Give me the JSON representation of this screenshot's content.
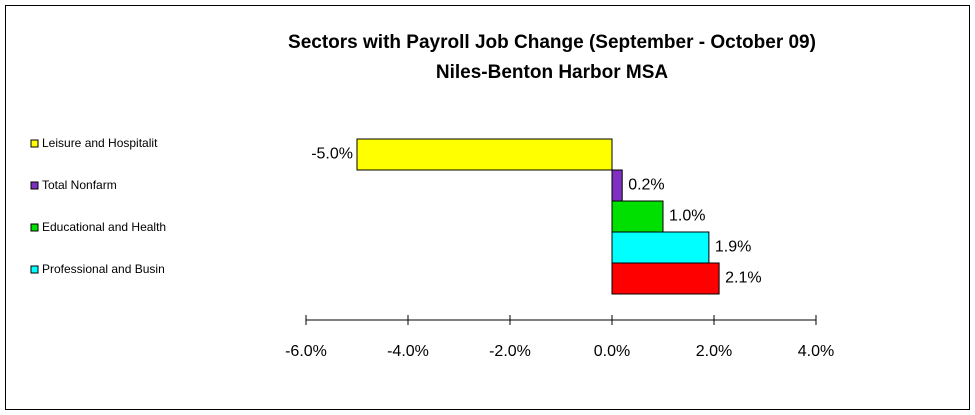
{
  "chart_data": {
    "type": "hbar",
    "title": "Sectors with Payroll Job Change (September - October 09)",
    "subtitle": "Niles-Benton Harbor MSA",
    "categories": [
      "Leisure and Hospitalit",
      "Total Nonfarm",
      "Educational and Health",
      "Professional and Busin",
      null
    ],
    "values": [
      -5.0,
      0.2,
      1.0,
      1.9,
      2.1
    ],
    "value_labels": [
      "-5.0%",
      "0.2%",
      "1.0%",
      "1.9%",
      "2.1%"
    ],
    "colors": [
      "#ffff00",
      "#8030c0",
      "#00e000",
      "#00ffff",
      "#ff0000"
    ],
    "xlim": [
      -6.0,
      4.0
    ],
    "xticks": [
      {
        "value": -6.0,
        "label": "-6.0%"
      },
      {
        "value": -4.0,
        "label": "-4.0%"
      },
      {
        "value": -2.0,
        "label": "-2.0%"
      },
      {
        "value": 0.0,
        "label": "0.0%"
      },
      {
        "value": 2.0,
        "label": "2.0%"
      },
      {
        "value": 4.0,
        "label": "4.0%"
      }
    ],
    "legend": "left"
  }
}
